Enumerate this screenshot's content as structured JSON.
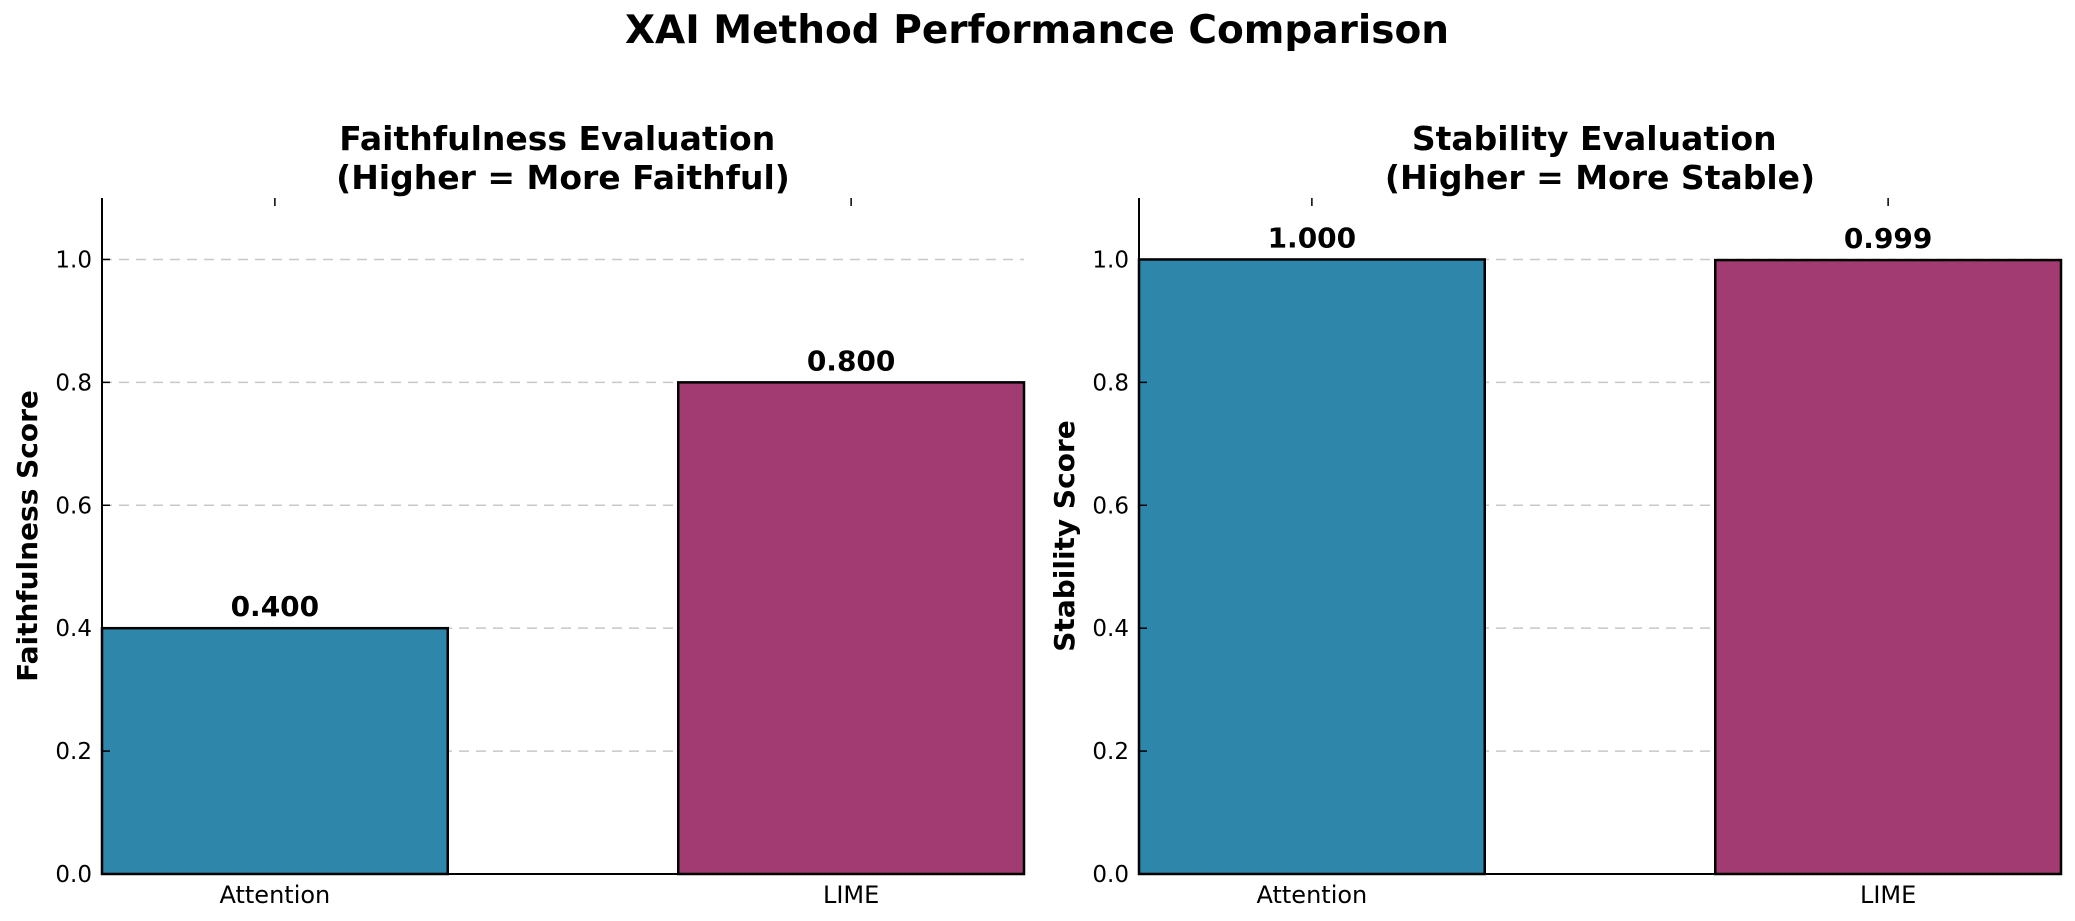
{
  "title": "XAI Method Performance Comparison",
  "colors": {
    "Attention": "#2e86ab",
    "LIME": "#a23b72"
  },
  "chart_data": [
    {
      "type": "bar",
      "title_lines": [
        "Faithfulness Evaluation",
        "(Higher = More Faithful)"
      ],
      "ylabel": "Faithfulness Score",
      "categories": [
        "Attention",
        "LIME"
      ],
      "values": [
        0.4,
        0.8
      ],
      "value_labels": [
        "0.400",
        "0.800"
      ],
      "ylim": [
        0,
        1.1
      ],
      "yticks": [
        0.0,
        0.2,
        0.4,
        0.6,
        0.8,
        1.0
      ],
      "ytick_labels": [
        "0.0",
        "0.2",
        "0.4",
        "0.6",
        "0.8",
        "1.0"
      ],
      "grid": "y-dashed",
      "colors": [
        "#2e86ab",
        "#a23b72"
      ]
    },
    {
      "type": "bar",
      "title_lines": [
        "Stability Evaluation",
        "(Higher = More Stable)"
      ],
      "ylabel": "Stability Score",
      "categories": [
        "Attention",
        "LIME"
      ],
      "values": [
        1.0,
        0.999
      ],
      "value_labels": [
        "1.000",
        "0.999"
      ],
      "ylim": [
        0,
        1.1
      ],
      "yticks": [
        0.0,
        0.2,
        0.4,
        0.6,
        0.8,
        1.0
      ],
      "ytick_labels": [
        "0.0",
        "0.2",
        "0.4",
        "0.6",
        "0.8",
        "1.0"
      ],
      "grid": "y-dashed",
      "colors": [
        "#2e86ab",
        "#a23b72"
      ]
    }
  ]
}
